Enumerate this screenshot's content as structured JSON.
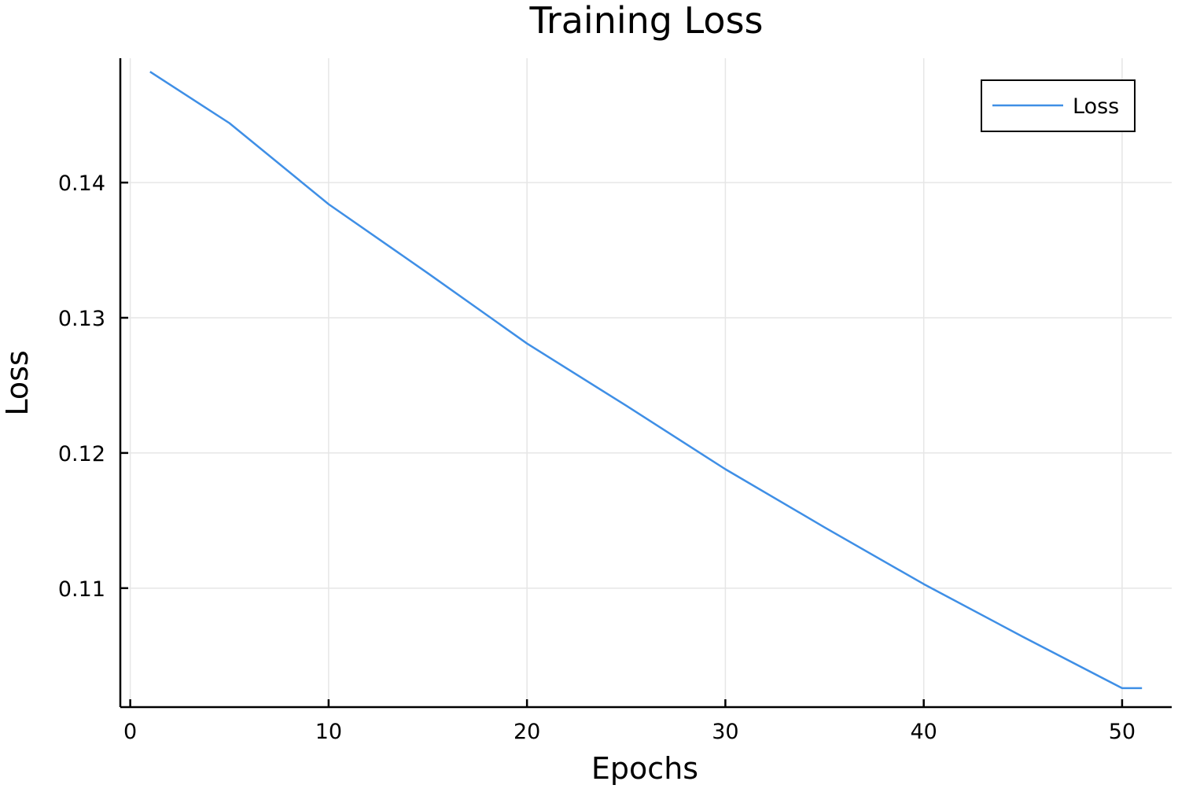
{
  "chart_data": {
    "type": "line",
    "title": "Training Loss",
    "xlabel": "Epochs",
    "ylabel": "Loss",
    "xlim": [
      -0.5,
      52.5
    ],
    "ylim": [
      0.1012,
      0.1492
    ],
    "xticks": [
      0,
      10,
      20,
      30,
      40,
      50
    ],
    "yticks": [
      0.11,
      0.12,
      0.13,
      0.14
    ],
    "xtick_labels": [
      "0",
      "10",
      "20",
      "30",
      "40",
      "50"
    ],
    "ytick_labels": [
      "0.11",
      "0.12",
      "0.13",
      "0.14"
    ],
    "grid": true,
    "legend": {
      "position": "top-right",
      "entries": [
        "Loss"
      ]
    },
    "series": [
      {
        "name": "Loss",
        "color": "#3f8fe6",
        "x": [
          1,
          5,
          10,
          15,
          20,
          25,
          30,
          35,
          40,
          45,
          50,
          51
        ],
        "y": [
          0.1482,
          0.1444,
          0.1384,
          0.1333,
          0.1281,
          0.1235,
          0.1188,
          0.1145,
          0.1103,
          0.1064,
          0.1026,
          0.1026
        ]
      }
    ]
  }
}
